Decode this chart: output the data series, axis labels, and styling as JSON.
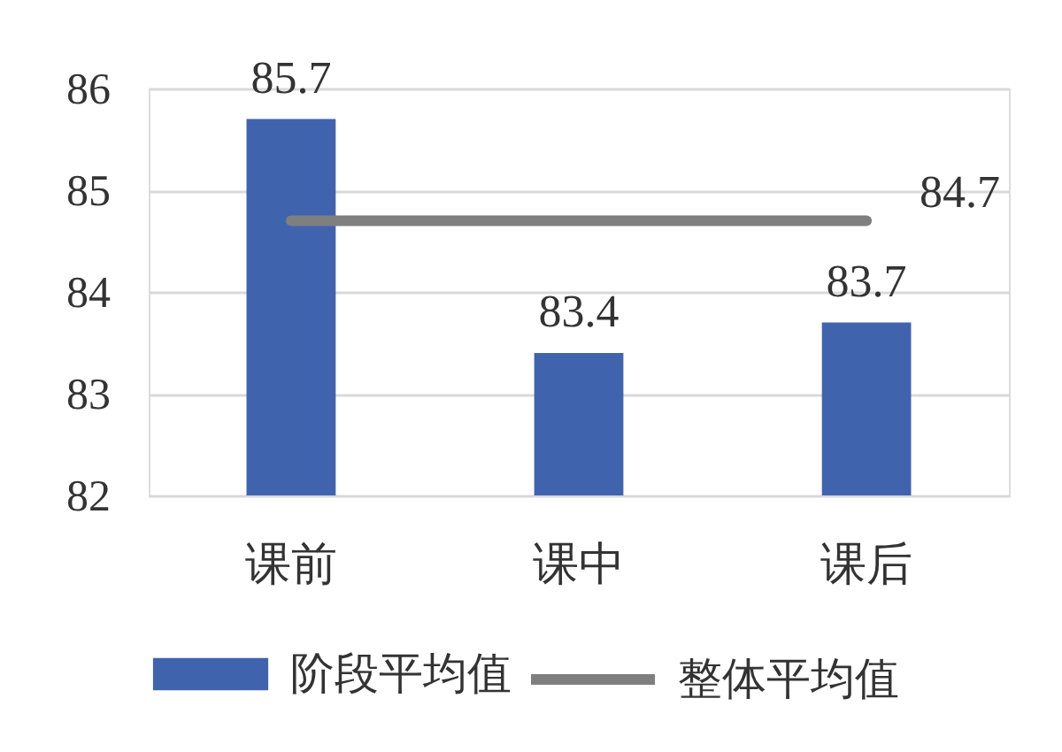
{
  "chart_data": {
    "type": "bar",
    "categories": [
      "课前",
      "课中",
      "课后"
    ],
    "series": [
      {
        "name": "阶段平均值",
        "color": "#4063ae",
        "values": [
          85.7,
          83.4,
          83.7
        ],
        "value_labels": [
          "85.7",
          "83.4",
          "83.7"
        ]
      },
      {
        "name": "整体平均值",
        "type": "line",
        "color": "#7f7f7f",
        "values": [
          84.7,
          84.7,
          84.7
        ],
        "value_labels": [
          null,
          null,
          "84.7"
        ]
      }
    ],
    "ylim": [
      82,
      86
    ],
    "yticks": [
      82,
      83,
      84,
      85,
      86
    ],
    "grid": "y",
    "legend": "bottom",
    "marker": "none",
    "line_style": "solid"
  }
}
